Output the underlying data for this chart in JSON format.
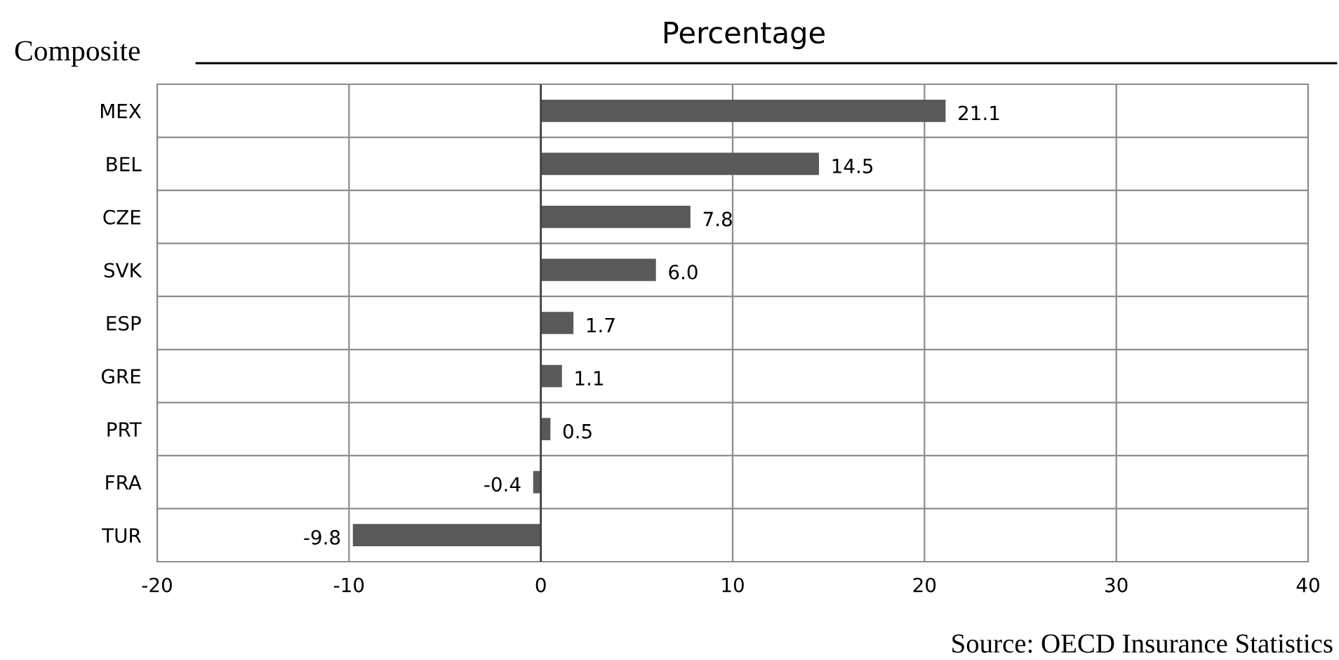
{
  "chart_data": {
    "type": "bar",
    "orientation": "horizontal",
    "title": "Composite",
    "subtitle": "Percentage",
    "categories": [
      "MEX",
      "BEL",
      "CZE",
      "SVK",
      "ESP",
      "GRE",
      "PRT",
      "FRA",
      "TUR"
    ],
    "values": [
      21.1,
      14.5,
      7.8,
      6.0,
      1.7,
      1.1,
      0.5,
      -0.4,
      -9.8
    ],
    "value_labels": [
      "21.1",
      "14.5",
      "7.8",
      "6.0",
      "1.7",
      "1.1",
      "0.5",
      "-0.4",
      "-9.8"
    ],
    "color": "#595959",
    "xlim": [
      -20,
      40
    ],
    "xticks": [
      -20,
      -10,
      0,
      10,
      20,
      30,
      40
    ],
    "grid": true,
    "legend": false,
    "annotations": [
      "Source: OECD Insurance Statistics"
    ]
  }
}
